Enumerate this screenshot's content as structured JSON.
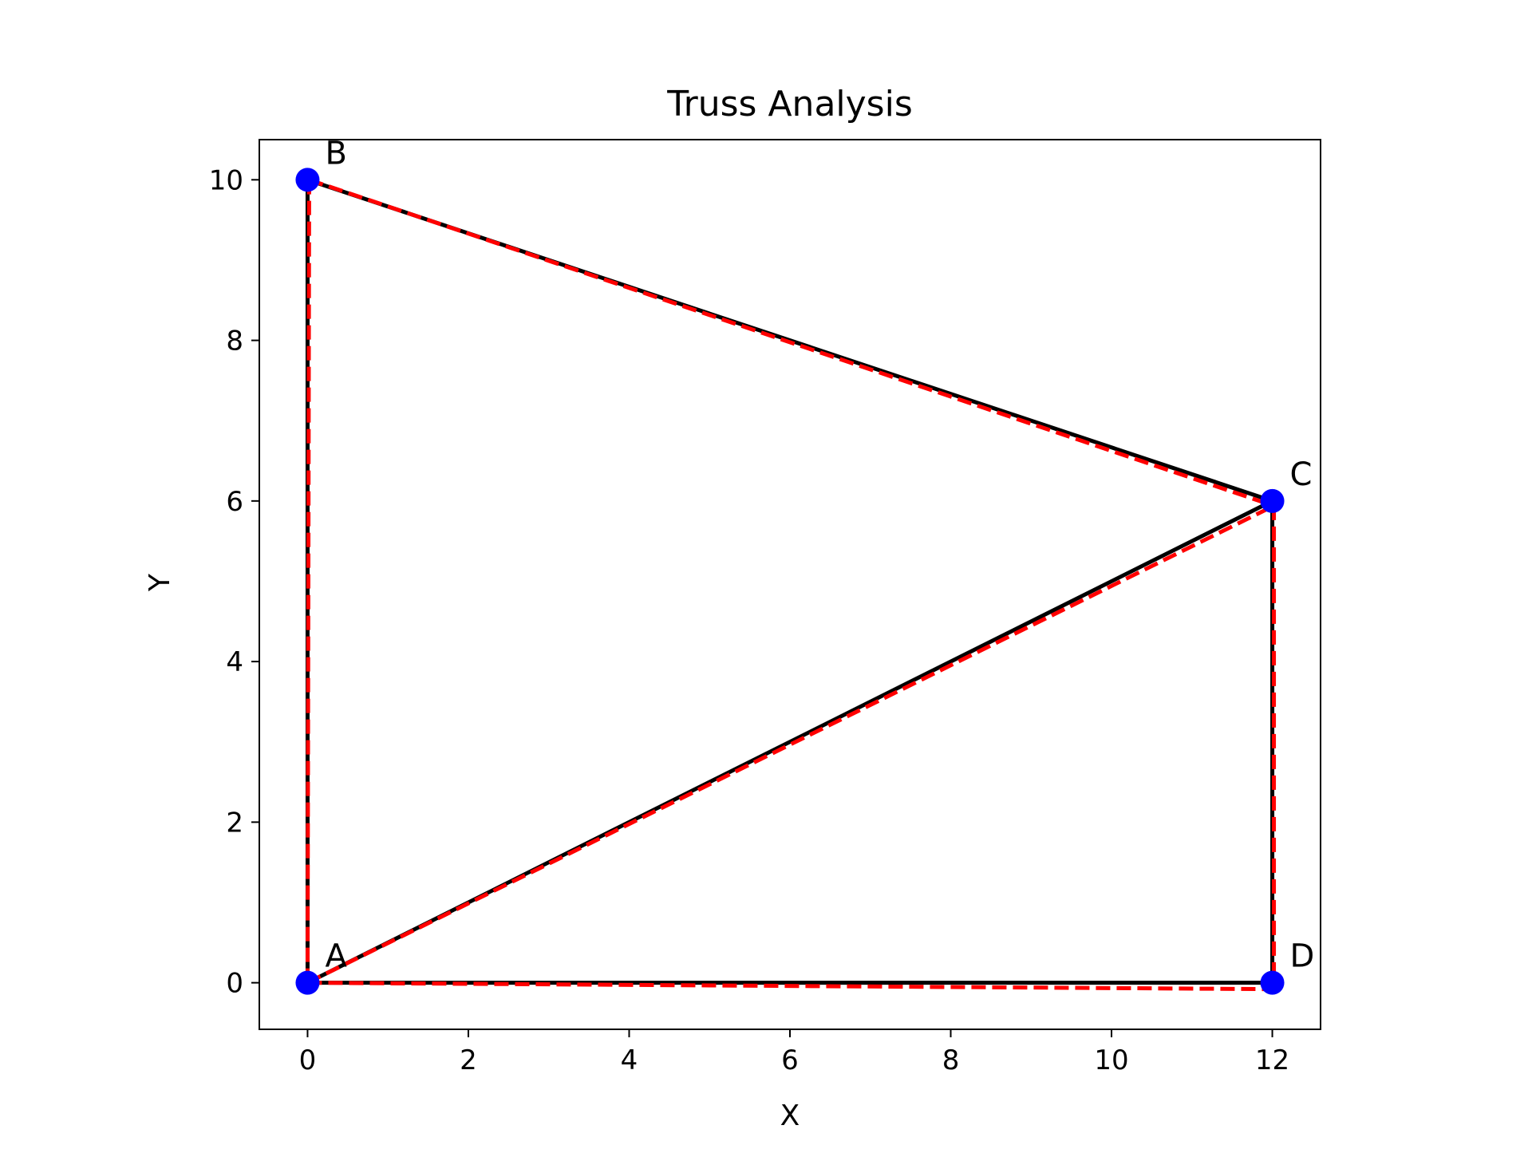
{
  "chart_data": {
    "type": "truss",
    "title": "Truss Analysis",
    "xlabel": "X",
    "ylabel": "Y",
    "xlim": [
      -0.6,
      12.6
    ],
    "ylim": [
      -0.58,
      10.5
    ],
    "xticks": [
      0,
      2,
      4,
      6,
      8,
      10,
      12
    ],
    "yticks": [
      0,
      2,
      4,
      6,
      8,
      10
    ],
    "grid": false,
    "nodes": [
      {
        "label": "A",
        "x": 0,
        "y": 0
      },
      {
        "label": "B",
        "x": 0,
        "y": 10
      },
      {
        "label": "C",
        "x": 12,
        "y": 6
      },
      {
        "label": "D",
        "x": 12,
        "y": 0
      }
    ],
    "members": [
      [
        "A",
        "B"
      ],
      [
        "B",
        "C"
      ],
      [
        "A",
        "C"
      ],
      [
        "C",
        "D"
      ],
      [
        "A",
        "D"
      ]
    ],
    "deformed_nodes": [
      {
        "label": "A",
        "x": 0,
        "y": 0
      },
      {
        "label": "B",
        "x": 0.02,
        "y": 10
      },
      {
        "label": "C",
        "x": 12.02,
        "y": 5.94
      },
      {
        "label": "D",
        "x": 12.02,
        "y": -0.08
      }
    ],
    "colors": {
      "node": "#0000ff",
      "member": "#000000",
      "deformed": "#ff0000"
    }
  }
}
